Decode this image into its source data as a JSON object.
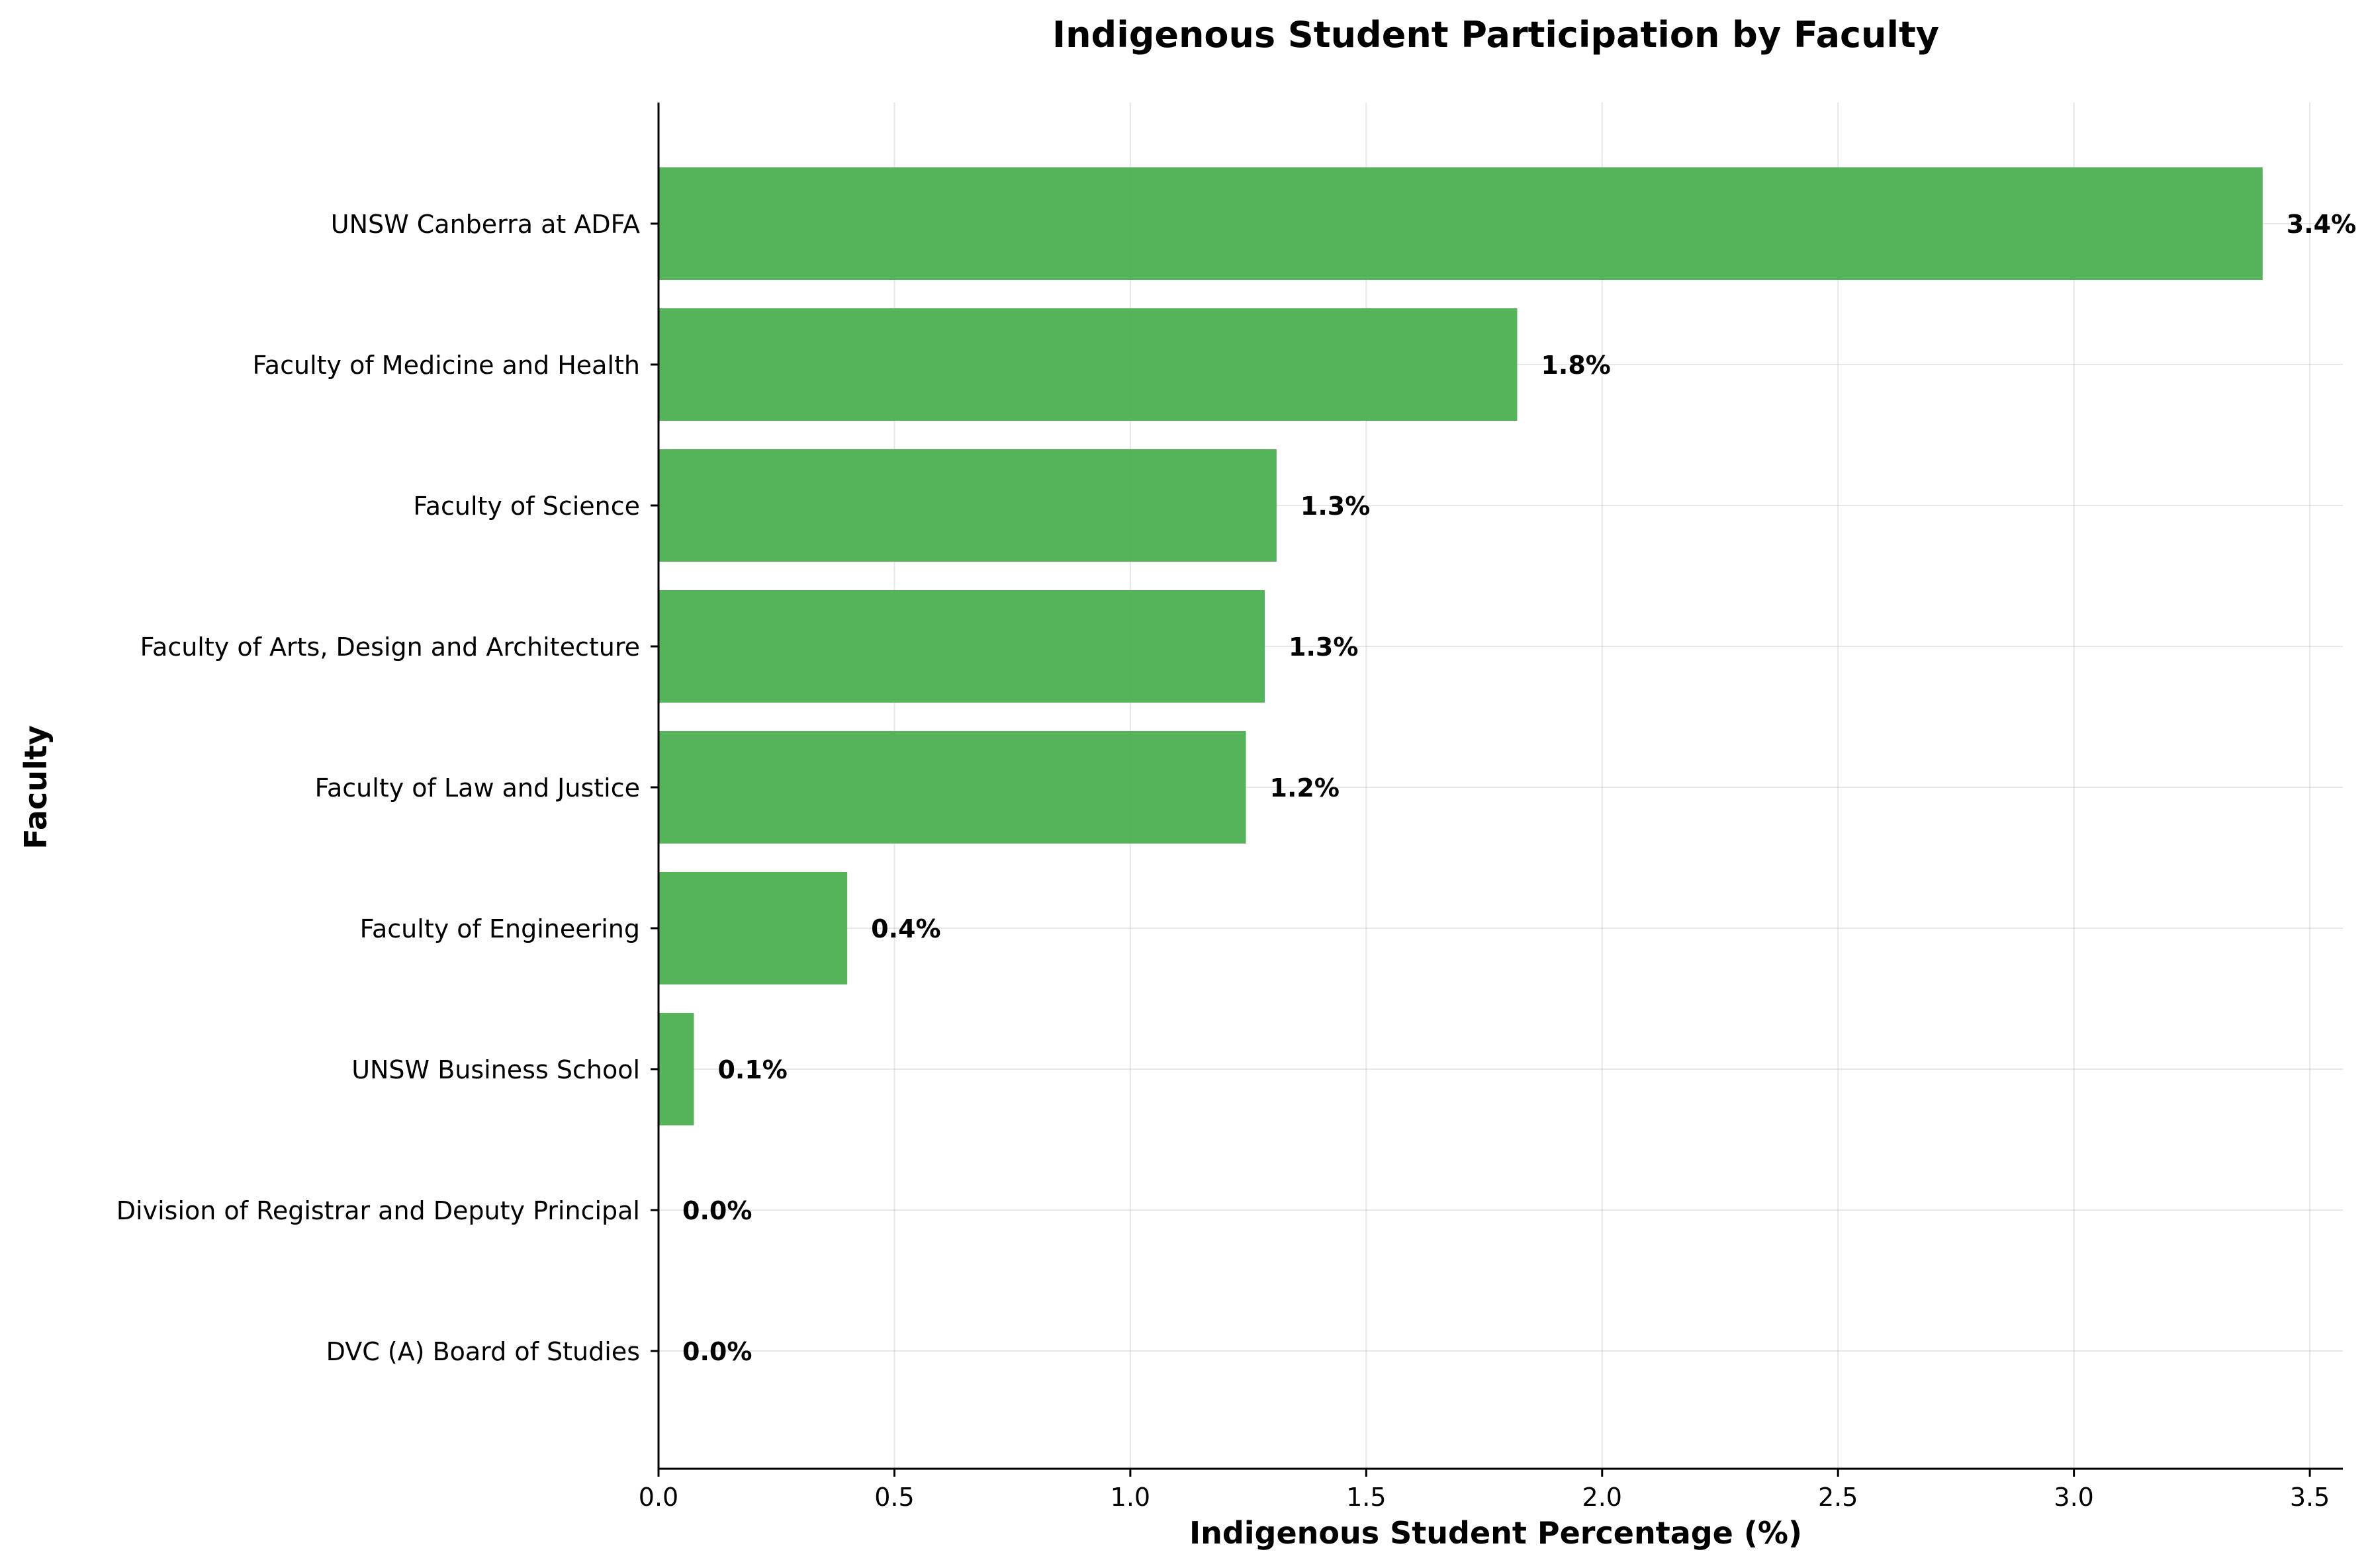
{
  "chart_data": {
    "type": "bar",
    "orientation": "horizontal",
    "title": "Indigenous Student Participation by Faculty",
    "xlabel": "Indigenous Student Percentage (%)",
    "ylabel": "Faculty",
    "xlim": [
      0,
      3.57
    ],
    "xticks": [
      0.0,
      0.5,
      1.0,
      1.5,
      2.0,
      2.5,
      3.0,
      3.5
    ],
    "xtick_labels": [
      "0.0",
      "0.5",
      "1.0",
      "1.5",
      "2.0",
      "2.5",
      "3.0",
      "3.5"
    ],
    "grid": true,
    "bar_color": "#4CAF50",
    "categories": [
      "UNSW Canberra at ADFA",
      "Faculty of Medicine and Health",
      "Faculty of Science",
      "Faculty of Arts, Design and Architecture",
      "Faculty of Law and Justice",
      "Faculty of Engineering",
      "UNSW Business School",
      "Division of Registrar and Deputy Principal",
      "DVC (A) Board of Studies"
    ],
    "values": [
      3.4,
      1.82,
      1.31,
      1.285,
      1.245,
      0.4,
      0.075,
      0.0,
      0.0
    ],
    "value_labels": [
      "3.4%",
      "1.8%",
      "1.3%",
      "1.3%",
      "1.2%",
      "0.4%",
      "0.1%",
      "0.0%",
      "0.0%"
    ]
  }
}
